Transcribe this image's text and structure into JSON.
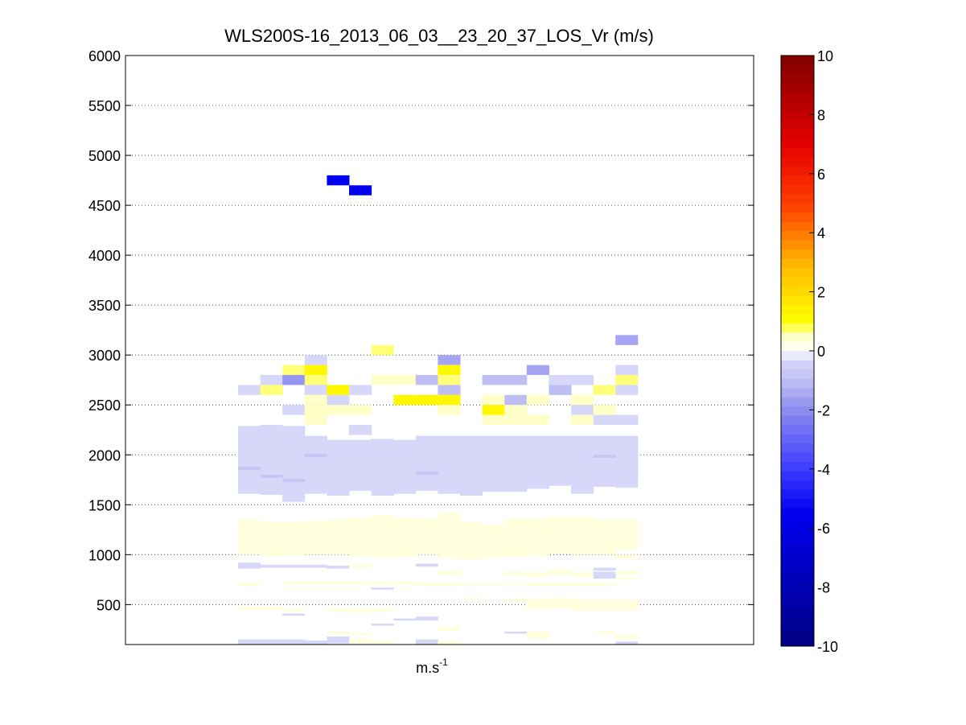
{
  "chart_data": {
    "type": "heatmap",
    "title": "WLS200S-16_2013_06_03__23_20_37_LOS_Vr (m/s)",
    "xlabel": "m.s",
    "xlabel_superscript": "-1",
    "ylabel": "",
    "ylim": [
      100,
      6000
    ],
    "yticks": [
      500,
      1000,
      1500,
      2000,
      2500,
      3000,
      3500,
      4000,
      4500,
      5000,
      5500,
      6000
    ],
    "grid": "horizontal dotted",
    "colorbar": {
      "range": [
        -10,
        10
      ],
      "ticks": [
        -10,
        -8,
        -6,
        -4,
        -2,
        0,
        2,
        4,
        6,
        8,
        10
      ],
      "colormap": "white-centred blue-to-red"
    },
    "columns": 19,
    "cells": [
      {
        "col": 4,
        "y0": 4700,
        "y1": 4800,
        "v": -5.5
      },
      {
        "col": 5,
        "y0": 4600,
        "y1": 4700,
        "v": -5.5
      },
      {
        "col": 17,
        "y0": 3100,
        "y1": 3200,
        "v": -1.5
      },
      {
        "col": 6,
        "y0": 3000,
        "y1": 3100,
        "v": 0.7
      },
      {
        "col": 3,
        "y0": 2900,
        "y1": 3000,
        "v": -0.3
      },
      {
        "col": 9,
        "y0": 2900,
        "y1": 3000,
        "v": -1.5
      },
      {
        "col": 2,
        "y0": 2800,
        "y1": 2900,
        "v": 0.7
      },
      {
        "col": 3,
        "y0": 2800,
        "y1": 2900,
        "v": 1.2
      },
      {
        "col": 9,
        "y0": 2800,
        "y1": 2900,
        "v": 1.2
      },
      {
        "col": 13,
        "y0": 2800,
        "y1": 2900,
        "v": -1.5
      },
      {
        "col": 17,
        "y0": 2800,
        "y1": 2900,
        "v": -0.3
      },
      {
        "col": 1,
        "y0": 2700,
        "y1": 2800,
        "v": -0.3
      },
      {
        "col": 2,
        "y0": 2700,
        "y1": 2800,
        "v": -1.8
      },
      {
        "col": 3,
        "y0": 2700,
        "y1": 2800,
        "v": 0.7
      },
      {
        "col": 6,
        "y0": 2700,
        "y1": 2800,
        "v": 0.5
      },
      {
        "col": 7,
        "y0": 2700,
        "y1": 2800,
        "v": 0.5
      },
      {
        "col": 8,
        "y0": 2700,
        "y1": 2800,
        "v": -1.0
      },
      {
        "col": 9,
        "y0": 2700,
        "y1": 2800,
        "v": 0.7
      },
      {
        "col": 11,
        "y0": 2700,
        "y1": 2800,
        "v": -1.0
      },
      {
        "col": 12,
        "y0": 2700,
        "y1": 2800,
        "v": -1.0
      },
      {
        "col": 14,
        "y0": 2700,
        "y1": 2800,
        "v": -0.3
      },
      {
        "col": 15,
        "y0": 2700,
        "y1": 2800,
        "v": -0.3
      },
      {
        "col": 17,
        "y0": 2700,
        "y1": 2800,
        "v": 0.7
      },
      {
        "col": 0,
        "y0": 2600,
        "y1": 2700,
        "v": -0.3
      },
      {
        "col": 1,
        "y0": 2600,
        "y1": 2700,
        "v": 0.7
      },
      {
        "col": 3,
        "y0": 2600,
        "y1": 2700,
        "v": -0.3
      },
      {
        "col": 4,
        "y0": 2600,
        "y1": 2700,
        "v": 1.2
      },
      {
        "col": 5,
        "y0": 2600,
        "y1": 2700,
        "v": -0.3
      },
      {
        "col": 9,
        "y0": 2600,
        "y1": 2700,
        "v": -1.0
      },
      {
        "col": 14,
        "y0": 2600,
        "y1": 2700,
        "v": -1.0
      },
      {
        "col": 16,
        "y0": 2600,
        "y1": 2700,
        "v": 0.7
      },
      {
        "col": 17,
        "y0": 2600,
        "y1": 2700,
        "v": -0.3
      },
      {
        "col": 3,
        "y0": 2500,
        "y1": 2600,
        "v": 0.5
      },
      {
        "col": 4,
        "y0": 2500,
        "y1": 2600,
        "v": -0.3
      },
      {
        "col": 7,
        "y0": 2500,
        "y1": 2600,
        "v": 1.2
      },
      {
        "col": 8,
        "y0": 2500,
        "y1": 2600,
        "v": 1.2
      },
      {
        "col": 9,
        "y0": 2500,
        "y1": 2600,
        "v": 1.2
      },
      {
        "col": 11,
        "y0": 2500,
        "y1": 2600,
        "v": 0.5
      },
      {
        "col": 12,
        "y0": 2500,
        "y1": 2600,
        "v": -1.0
      },
      {
        "col": 13,
        "y0": 2500,
        "y1": 2600,
        "v": 0.5
      },
      {
        "col": 15,
        "y0": 2500,
        "y1": 2600,
        "v": 0.5
      },
      {
        "col": 2,
        "y0": 2400,
        "y1": 2500,
        "v": -0.3
      },
      {
        "col": 3,
        "y0": 2400,
        "y1": 2500,
        "v": 0.5
      },
      {
        "col": 4,
        "y0": 2400,
        "y1": 2500,
        "v": 0.5
      },
      {
        "col": 5,
        "y0": 2400,
        "y1": 2500,
        "v": 0.5
      },
      {
        "col": 9,
        "y0": 2400,
        "y1": 2500,
        "v": 0.5
      },
      {
        "col": 11,
        "y0": 2400,
        "y1": 2500,
        "v": 1.2
      },
      {
        "col": 12,
        "y0": 2400,
        "y1": 2500,
        "v": 0.5
      },
      {
        "col": 15,
        "y0": 2400,
        "y1": 2500,
        "v": -0.3
      },
      {
        "col": 16,
        "y0": 2400,
        "y1": 2500,
        "v": 0.5
      },
      {
        "col": 3,
        "y0": 2300,
        "y1": 2400,
        "v": 0.5
      },
      {
        "col": 11,
        "y0": 2300,
        "y1": 2400,
        "v": 0.5
      },
      {
        "col": 12,
        "y0": 2300,
        "y1": 2400,
        "v": 0.5
      },
      {
        "col": 13,
        "y0": 2300,
        "y1": 2400,
        "v": 0.5
      },
      {
        "col": 15,
        "y0": 2300,
        "y1": 2400,
        "v": 0.5
      },
      {
        "col": 16,
        "y0": 2300,
        "y1": 2400,
        "v": -0.3
      },
      {
        "col": 17,
        "y0": 2300,
        "y1": 2400,
        "v": -0.3
      },
      {
        "col": 5,
        "y0": 2200,
        "y1": 2300,
        "v": -0.3
      },
      {
        "col": 0,
        "y0": 1610,
        "y1": 2290,
        "v": -0.3
      },
      {
        "col": 1,
        "y0": 1600,
        "y1": 2300,
        "v": -0.3
      },
      {
        "col": 2,
        "y0": 1530,
        "y1": 2290,
        "v": -0.3
      },
      {
        "col": 3,
        "y0": 1610,
        "y1": 2190,
        "v": -0.3
      },
      {
        "col": 4,
        "y0": 1590,
        "y1": 2150,
        "v": -0.3
      },
      {
        "col": 5,
        "y0": 1640,
        "y1": 2150,
        "v": -0.3
      },
      {
        "col": 6,
        "y0": 1590,
        "y1": 2160,
        "v": -0.3
      },
      {
        "col": 7,
        "y0": 1610,
        "y1": 2150,
        "v": -0.3
      },
      {
        "col": 8,
        "y0": 1640,
        "y1": 2190,
        "v": -0.3
      },
      {
        "col": 9,
        "y0": 1610,
        "y1": 2190,
        "v": -0.3
      },
      {
        "col": 10,
        "y0": 1590,
        "y1": 2190,
        "v": -0.3
      },
      {
        "col": 11,
        "y0": 1630,
        "y1": 2190,
        "v": -0.3
      },
      {
        "col": 12,
        "y0": 1630,
        "y1": 2190,
        "v": -0.3
      },
      {
        "col": 13,
        "y0": 1660,
        "y1": 2190,
        "v": -0.3
      },
      {
        "col": 14,
        "y0": 1690,
        "y1": 2190,
        "v": -0.3
      },
      {
        "col": 15,
        "y0": 1610,
        "y1": 2190,
        "v": -0.3
      },
      {
        "col": 16,
        "y0": 1680,
        "y1": 2190,
        "v": -0.3
      },
      {
        "col": 17,
        "y0": 1670,
        "y1": 2190,
        "v": -0.3
      },
      {
        "col": 0,
        "y0": 1850,
        "y1": 1880,
        "v": -0.8
      },
      {
        "col": 1,
        "y0": 1770,
        "y1": 1800,
        "v": -0.8
      },
      {
        "col": 2,
        "y0": 1730,
        "y1": 1760,
        "v": -0.8
      },
      {
        "col": 3,
        "y0": 1980,
        "y1": 2010,
        "v": -0.8
      },
      {
        "col": 8,
        "y0": 1800,
        "y1": 1830,
        "v": -0.8
      },
      {
        "col": 16,
        "y0": 1970,
        "y1": 2000,
        "v": -0.8
      },
      {
        "col": 0,
        "y0": 1000,
        "y1": 1350,
        "v": 0.3
      },
      {
        "col": 1,
        "y0": 980,
        "y1": 1330,
        "v": 0.3
      },
      {
        "col": 2,
        "y0": 990,
        "y1": 1330,
        "v": 0.3
      },
      {
        "col": 3,
        "y0": 1000,
        "y1": 1340,
        "v": 0.3
      },
      {
        "col": 4,
        "y0": 1000,
        "y1": 1350,
        "v": 0.3
      },
      {
        "col": 5,
        "y0": 980,
        "y1": 1370,
        "v": 0.3
      },
      {
        "col": 6,
        "y0": 970,
        "y1": 1400,
        "v": 0.3
      },
      {
        "col": 7,
        "y0": 980,
        "y1": 1370,
        "v": 0.3
      },
      {
        "col": 8,
        "y0": 1000,
        "y1": 1360,
        "v": 0.3
      },
      {
        "col": 9,
        "y0": 960,
        "y1": 1420,
        "v": 0.3
      },
      {
        "col": 10,
        "y0": 950,
        "y1": 1330,
        "v": 0.3
      },
      {
        "col": 11,
        "y0": 970,
        "y1": 1300,
        "v": 0.3
      },
      {
        "col": 12,
        "y0": 980,
        "y1": 1360,
        "v": 0.3
      },
      {
        "col": 13,
        "y0": 990,
        "y1": 1360,
        "v": 0.3
      },
      {
        "col": 14,
        "y0": 1010,
        "y1": 1380,
        "v": 0.3
      },
      {
        "col": 15,
        "y0": 1000,
        "y1": 1380,
        "v": 0.3
      },
      {
        "col": 16,
        "y0": 1000,
        "y1": 1350,
        "v": 0.3
      },
      {
        "col": 17,
        "y0": 1050,
        "y1": 1350,
        "v": 0.3
      },
      {
        "col": 0,
        "y0": 860,
        "y1": 920,
        "v": -0.3
      },
      {
        "col": 1,
        "y0": 870,
        "y1": 900,
        "v": -0.3
      },
      {
        "col": 2,
        "y0": 870,
        "y1": 900,
        "v": -0.3
      },
      {
        "col": 3,
        "y0": 870,
        "y1": 900,
        "v": -0.3
      },
      {
        "col": 4,
        "y0": 860,
        "y1": 890,
        "v": -0.3
      },
      {
        "col": 5,
        "y0": 870,
        "y1": 900,
        "v": 0.3
      },
      {
        "col": 8,
        "y0": 880,
        "y1": 910,
        "v": -0.3
      },
      {
        "col": 12,
        "y0": 790,
        "y1": 830,
        "v": 0.3
      },
      {
        "col": 13,
        "y0": 780,
        "y1": 820,
        "v": 0.3
      },
      {
        "col": 14,
        "y0": 800,
        "y1": 860,
        "v": 0.3
      },
      {
        "col": 15,
        "y0": 780,
        "y1": 820,
        "v": 0.3
      },
      {
        "col": 16,
        "y0": 760,
        "y1": 830,
        "v": -0.3
      },
      {
        "col": 17,
        "y0": 960,
        "y1": 1000,
        "v": 0.3
      },
      {
        "col": 17,
        "y0": 800,
        "y1": 840,
        "v": 0.3
      },
      {
        "col": 9,
        "y0": 800,
        "y1": 840,
        "v": 0.3
      },
      {
        "col": 16,
        "y0": 840,
        "y1": 870,
        "v": -0.3
      },
      {
        "col": 0,
        "y0": 690,
        "y1": 720,
        "v": 0.3
      },
      {
        "col": 2,
        "y0": 700,
        "y1": 730,
        "v": 0.3
      },
      {
        "col": 3,
        "y0": 700,
        "y1": 730,
        "v": 0.3
      },
      {
        "col": 4,
        "y0": 700,
        "y1": 730,
        "v": 0.3
      },
      {
        "col": 5,
        "y0": 700,
        "y1": 730,
        "v": 0.3
      },
      {
        "col": 6,
        "y0": 700,
        "y1": 730,
        "v": 0.3
      },
      {
        "col": 7,
        "y0": 700,
        "y1": 730,
        "v": 0.3
      },
      {
        "col": 8,
        "y0": 690,
        "y1": 720,
        "v": 0.3
      },
      {
        "col": 9,
        "y0": 690,
        "y1": 720,
        "v": 0.3
      },
      {
        "col": 10,
        "y0": 690,
        "y1": 710,
        "v": 0.3
      },
      {
        "col": 11,
        "y0": 690,
        "y1": 710,
        "v": 0.3
      },
      {
        "col": 12,
        "y0": 700,
        "y1": 720,
        "v": 0.3
      },
      {
        "col": 13,
        "y0": 690,
        "y1": 720,
        "v": 0.3
      },
      {
        "col": 14,
        "y0": 690,
        "y1": 720,
        "v": 0.3
      },
      {
        "col": 15,
        "y0": 690,
        "y1": 720,
        "v": 0.3
      },
      {
        "col": 16,
        "y0": 690,
        "y1": 720,
        "v": 0.3
      },
      {
        "col": 17,
        "y0": 750,
        "y1": 770,
        "v": 0.3
      },
      {
        "col": 6,
        "y0": 650,
        "y1": 670,
        "v": -0.3
      },
      {
        "col": 10,
        "y0": 550,
        "y1": 570,
        "v": 0.3
      },
      {
        "col": 12,
        "y0": 530,
        "y1": 560,
        "v": 0.3
      },
      {
        "col": 13,
        "y0": 530,
        "y1": 560,
        "v": 0.3
      },
      {
        "col": 14,
        "y0": 540,
        "y1": 570,
        "v": 0.3
      },
      {
        "col": 15,
        "y0": 440,
        "y1": 550,
        "v": 0.3
      },
      {
        "col": 16,
        "y0": 440,
        "y1": 550,
        "v": 0.3
      },
      {
        "col": 17,
        "y0": 440,
        "y1": 550,
        "v": 0.3
      },
      {
        "col": 13,
        "y0": 450,
        "y1": 530,
        "v": 0.3
      },
      {
        "col": 14,
        "y0": 460,
        "y1": 540,
        "v": 0.3
      },
      {
        "col": 0,
        "y0": 450,
        "y1": 480,
        "v": 0.3
      },
      {
        "col": 1,
        "y0": 450,
        "y1": 480,
        "v": 0.3
      },
      {
        "col": 2,
        "y0": 430,
        "y1": 460,
        "v": 0.3
      },
      {
        "col": 4,
        "y0": 430,
        "y1": 460,
        "v": 0.3
      },
      {
        "col": 5,
        "y0": 420,
        "y1": 460,
        "v": 0.3
      },
      {
        "col": 6,
        "y0": 430,
        "y1": 460,
        "v": 0.3
      },
      {
        "col": 2,
        "y0": 390,
        "y1": 410,
        "v": -0.3
      },
      {
        "col": 8,
        "y0": 340,
        "y1": 380,
        "v": -0.3
      },
      {
        "col": 7,
        "y0": 340,
        "y1": 360,
        "v": -0.3
      },
      {
        "col": 6,
        "y0": 290,
        "y1": 310,
        "v": -0.3
      },
      {
        "col": 9,
        "y0": 240,
        "y1": 280,
        "v": 0.3
      },
      {
        "col": 4,
        "y0": 200,
        "y1": 230,
        "v": 0.3
      },
      {
        "col": 5,
        "y0": 200,
        "y1": 220,
        "v": 0.3
      },
      {
        "col": 12,
        "y0": 210,
        "y1": 230,
        "v": -0.3
      },
      {
        "col": 13,
        "y0": 160,
        "y1": 230,
        "v": 0.3
      },
      {
        "col": 16,
        "y0": 200,
        "y1": 230,
        "v": 0.3
      },
      {
        "col": 17,
        "y0": 150,
        "y1": 200,
        "v": 0.3
      },
      {
        "col": 0,
        "y0": 100,
        "y1": 150,
        "v": -0.3
      },
      {
        "col": 1,
        "y0": 100,
        "y1": 150,
        "v": -0.3
      },
      {
        "col": 2,
        "y0": 100,
        "y1": 150,
        "v": -0.3
      },
      {
        "col": 3,
        "y0": 100,
        "y1": 140,
        "v": -0.3
      },
      {
        "col": 4,
        "y0": 110,
        "y1": 180,
        "v": -0.3
      },
      {
        "col": 5,
        "y0": 110,
        "y1": 160,
        "v": 0.3
      },
      {
        "col": 6,
        "y0": 110,
        "y1": 140,
        "v": 0.3
      },
      {
        "col": 8,
        "y0": 100,
        "y1": 150,
        "v": -0.3
      },
      {
        "col": 9,
        "y0": 100,
        "y1": 130,
        "v": 0.3
      },
      {
        "col": 17,
        "y0": 100,
        "y1": 130,
        "v": -0.3
      }
    ]
  }
}
